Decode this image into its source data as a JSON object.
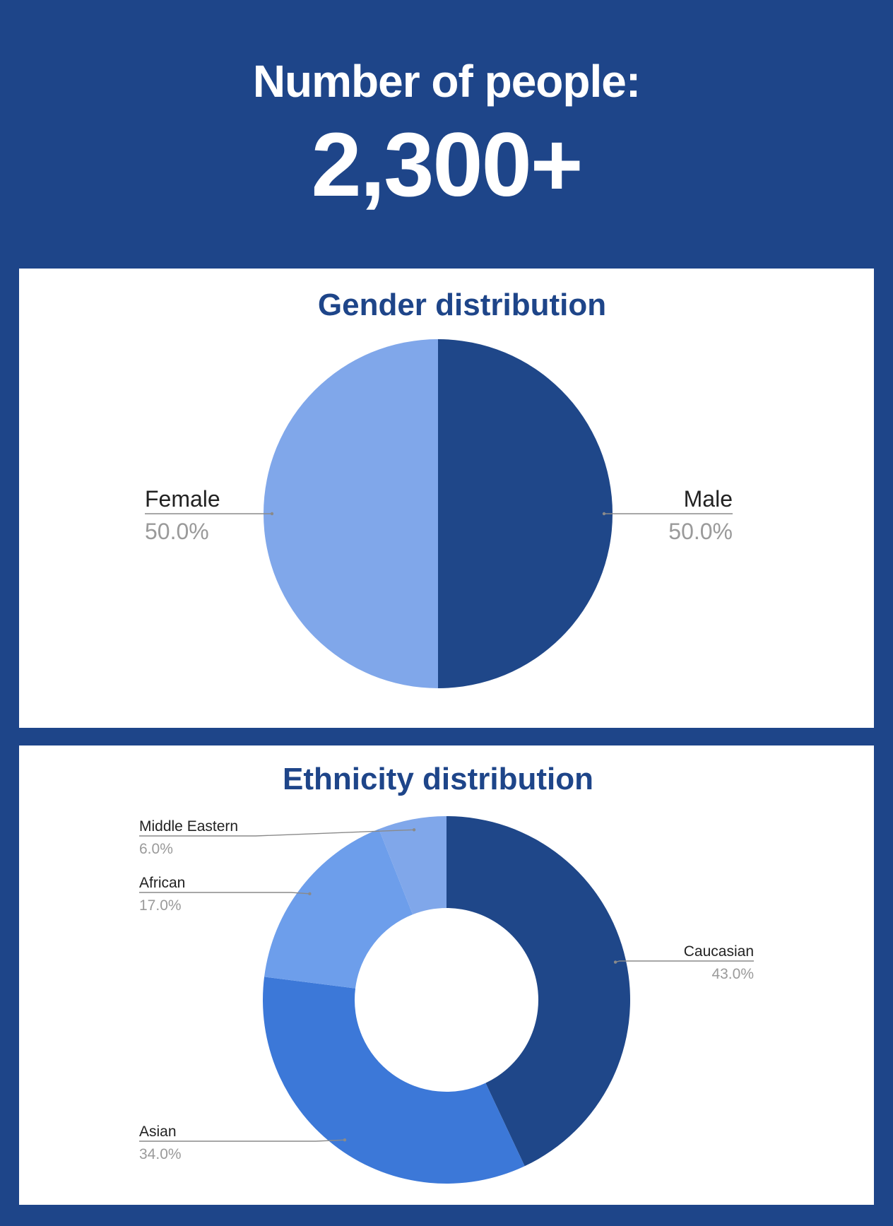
{
  "header": {
    "title": "Number of people:",
    "count": "2,300+"
  },
  "colors": {
    "background": "#1e4589",
    "panel": "#ffffff",
    "title_text": "#1e4589"
  },
  "chart_data": [
    {
      "type": "pie",
      "title": "Gender distribution",
      "slices": [
        {
          "name": "Male",
          "value": 50.0,
          "label": "50.0%",
          "color": "#1f4789"
        },
        {
          "name": "Female",
          "value": 50.0,
          "label": "50.0%",
          "color": "#80a7ea"
        }
      ]
    },
    {
      "type": "pie",
      "donut": true,
      "title": "Ethnicity distribution",
      "slices": [
        {
          "name": "Caucasian",
          "value": 43.0,
          "label": "43.0%",
          "color": "#1f4789"
        },
        {
          "name": "Asian",
          "value": 34.0,
          "label": "34.0%",
          "color": "#3c78d8"
        },
        {
          "name": "African",
          "value": 17.0,
          "label": "17.0%",
          "color": "#6d9eeb"
        },
        {
          "name": "Middle Eastern",
          "value": 6.0,
          "label": "6.0%",
          "color": "#80a7ea"
        }
      ]
    }
  ]
}
